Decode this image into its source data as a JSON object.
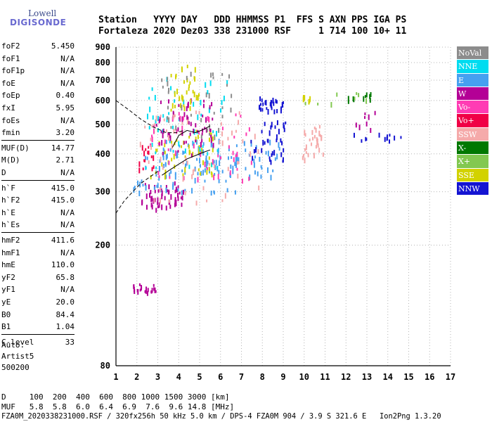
{
  "logo": {
    "line1": "Lowell",
    "line2": "DIGISONDE"
  },
  "header": {
    "row1": "Station   YYYY DAY   DDD HHMMSS P1  FFS S AXN PPS IGA PS",
    "row2": "Fortaleza 2020 Dez03 338 231000 RSF     1 714 100 10+ 11"
  },
  "params": [
    {
      "name": "foF2",
      "value": "5.450"
    },
    {
      "name": "foF1",
      "value": "N/A"
    },
    {
      "name": "foF1p",
      "value": "N/A"
    },
    {
      "name": "foE",
      "value": "N/A"
    },
    {
      "name": "foEp",
      "value": "0.40"
    },
    {
      "name": "fxI",
      "value": "5.95"
    },
    {
      "name": "foEs",
      "value": "N/A"
    },
    {
      "name": "fmin",
      "value": "3.20"
    },
    {
      "name": "MUF(D)",
      "value": "14.77"
    },
    {
      "name": "M(D)",
      "value": "2.71"
    },
    {
      "name": "D",
      "value": "N/A"
    },
    {
      "name": "h`F",
      "value": "415.0"
    },
    {
      "name": "h`F2",
      "value": "415.0"
    },
    {
      "name": "h`E",
      "value": "N/A"
    },
    {
      "name": "h`Es",
      "value": "N/A"
    },
    {
      "name": "hmF2",
      "value": "411.6"
    },
    {
      "name": "hmF1",
      "value": "N/A"
    },
    {
      "name": "hmE",
      "value": "110.0"
    },
    {
      "name": "yF2",
      "value": "65.8"
    },
    {
      "name": "yF1",
      "value": "N/A"
    },
    {
      "name": "yE",
      "value": "20.0"
    },
    {
      "name": "B0",
      "value": "84.4"
    },
    {
      "name": "B1",
      "value": "1.04"
    },
    {
      "name": "C-level",
      "value": "33"
    }
  ],
  "auto_block": {
    "line1": "Auto:",
    "line2": "Artist5",
    "line3": "500200"
  },
  "legend": [
    {
      "label": "NoVal",
      "color": "#8c8c8c"
    },
    {
      "label": "NNE",
      "color": "#00dcf0"
    },
    {
      "label": "E",
      "color": "#46a0f0"
    },
    {
      "label": "W",
      "color": "#b40096"
    },
    {
      "label": "Vo-",
      "color": "#ff3cb4"
    },
    {
      "label": "Vo+",
      "color": "#f00046"
    },
    {
      "label": "SSW",
      "color": "#f5aaaa"
    },
    {
      "label": "X-",
      "color": "#007800"
    },
    {
      "label": "X+",
      "color": "#82c850"
    },
    {
      "label": "SSE",
      "color": "#d2d200"
    },
    {
      "label": "NNW",
      "color": "#1414d2"
    }
  ],
  "footer": {
    "d_line": "D     100  200  400  600  800 1000 1500 3000 [km]",
    "muf_line": "MUF   5.8  5.8  6.0  6.4  6.9  7.6  9.6 14.8 [MHz]",
    "file_line": "FZA0M_2020338231000.RSF / 320fx256h 50 kHz 5.0 km / DPS-4 FZA0M 904 / 3.9 S 321.6 E   Ion2Png 1.3.20"
  },
  "chart_data": {
    "type": "scatter",
    "title": "",
    "xlabel": "",
    "ylabel": "",
    "xlim": [
      1,
      17
    ],
    "ylim": [
      80,
      900
    ],
    "y_scale": "log",
    "grid": true,
    "legend_position": "right",
    "x_ticks": [
      1,
      2,
      3,
      4,
      5,
      6,
      7,
      8,
      9,
      10,
      11,
      12,
      13,
      14,
      15,
      16,
      17
    ],
    "y_ticks": [
      80,
      200,
      300,
      400,
      500,
      600,
      700,
      800,
      900
    ],
    "clusters": [
      {
        "series": "W",
        "x": [
          2.2,
          4.2
        ],
        "y": [
          265,
          325
        ],
        "n": 55
      },
      {
        "series": "E",
        "x": [
          1.8,
          6.8
        ],
        "y": [
          300,
          420
        ],
        "n": 80
      },
      {
        "series": "E",
        "x": [
          3.2,
          8.8
        ],
        "y": [
          340,
          450
        ],
        "n": 70
      },
      {
        "series": "SSE",
        "x": [
          2.6,
          5.8
        ],
        "y": [
          340,
          500
        ],
        "n": 50
      },
      {
        "series": "NNE",
        "x": [
          2.4,
          6.4
        ],
        "y": [
          360,
          720
        ],
        "n": 55
      },
      {
        "series": "W",
        "x": [
          2.9,
          5.7
        ],
        "y": [
          400,
          620
        ],
        "n": 60
      },
      {
        "series": "Vo-",
        "x": [
          2.6,
          7.6
        ],
        "y": [
          330,
          560
        ],
        "n": 50
      },
      {
        "series": "SSW",
        "x": [
          2.0,
          7.8
        ],
        "y": [
          280,
          560
        ],
        "n": 60
      },
      {
        "series": "SSE",
        "x": [
          3.6,
          5.0
        ],
        "y": [
          560,
          800
        ],
        "n": 35
      },
      {
        "series": "NoVal",
        "x": [
          3.0,
          6.5
        ],
        "y": [
          460,
          760
        ],
        "n": 35
      },
      {
        "series": "Vo+",
        "x": [
          2.0,
          2.8
        ],
        "y": [
          360,
          430
        ],
        "n": 15
      },
      {
        "series": "NNW",
        "x": [
          7.8,
          9.0
        ],
        "y": [
          560,
          620
        ],
        "n": 30
      },
      {
        "series": "NNW",
        "x": [
          7.4,
          9.2
        ],
        "y": [
          380,
          520
        ],
        "n": 35
      },
      {
        "series": "SSW",
        "x": [
          9.9,
          10.9
        ],
        "y": [
          380,
          500
        ],
        "n": 30
      },
      {
        "series": "W",
        "x": [
          1.7,
          3.0
        ],
        "y": [
          141,
          150
        ],
        "n": 22
      },
      {
        "series": "NNW",
        "x": [
          12.3,
          14.6
        ],
        "y": [
          445,
          470
        ],
        "n": 12
      },
      {
        "series": "W",
        "x": [
          12.4,
          13.6
        ],
        "y": [
          480,
          560
        ],
        "n": 8
      },
      {
        "series": "X-",
        "x": [
          12.0,
          13.5
        ],
        "y": [
          600,
          640
        ],
        "n": 10
      },
      {
        "series": "X+",
        "x": [
          10.0,
          13.4
        ],
        "y": [
          590,
          640
        ],
        "n": 8
      },
      {
        "series": "SSE",
        "x": [
          9.8,
          11.0
        ],
        "y": [
          600,
          630
        ],
        "n": 6
      }
    ],
    "profile_curves": [
      {
        "style": "dashed",
        "x": [
          1.0,
          1.6,
          2.2,
          2.8,
          3.4,
          3.9,
          4.3
        ],
        "y": [
          600,
          560,
          520,
          490,
          470,
          470,
          480
        ]
      },
      {
        "style": "dashed",
        "x": [
          1.0,
          1.4,
          1.8,
          2.2,
          2.6,
          3.0
        ],
        "y": [
          255,
          280,
          300,
          320,
          335,
          350
        ]
      },
      {
        "style": "solid",
        "x": [
          3.2,
          3.6,
          4.0,
          4.4,
          4.8,
          5.2,
          5.5
        ],
        "y": [
          340,
          355,
          370,
          385,
          395,
          405,
          412
        ]
      },
      {
        "style": "solid",
        "x": [
          3.7,
          4.0,
          4.4,
          4.8,
          5.2,
          5.5
        ],
        "y": [
          420,
          460,
          478,
          470,
          482,
          495
        ]
      }
    ]
  }
}
